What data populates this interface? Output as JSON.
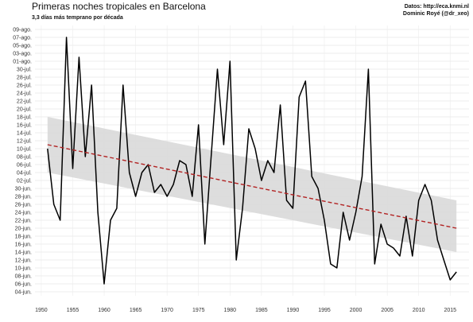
{
  "chart_data": {
    "type": "line",
    "title": "Primeras noches tropicales en Barcelona",
    "subtitle": "3,3 días más temprano por década",
    "source_line1": "Datos: http://eca.knmi.nl",
    "source_line2": "Dominic Royé (@dr_xeo)",
    "xlabel": "",
    "ylabel": "",
    "x_ticks": [
      1950,
      1955,
      1960,
      1965,
      1970,
      1975,
      1980,
      1985,
      1990,
      1995,
      2000,
      2005,
      2010,
      2015
    ],
    "x_range": [
      1949,
      2018
    ],
    "y_tick_labels": [
      "04-jun.",
      "06-jun.",
      "08-jun.",
      "10-jun.",
      "12-jun.",
      "14-jun.",
      "16-jun.",
      "18-jun.",
      "20-jun.",
      "22-jun.",
      "24-jun.",
      "26-jun.",
      "28-jun.",
      "30-jun.",
      "02-jul.",
      "04-jul.",
      "06-jul.",
      "08-jul.",
      "10-jul.",
      "12-jul.",
      "14-jul.",
      "16-jul.",
      "18-jul.",
      "20-jul.",
      "22-jul.",
      "24-jul.",
      "26-jul.",
      "28-jul.",
      "30-jul.",
      "01-ago.",
      "03-ago.",
      "05-ago.",
      "07-ago.",
      "09-ago."
    ],
    "y_range": [
      "03-jun.",
      "10-ago."
    ],
    "grid": true,
    "legend": "none",
    "series": [
      {
        "line_color": "#000000",
        "x": [
          1951,
          1952,
          1953,
          1954,
          1955,
          1956,
          1957,
          1958,
          1959,
          1960,
          1961,
          1962,
          1963,
          1964,
          1965,
          1966,
          1967,
          1968,
          1969,
          1970,
          1971,
          1972,
          1973,
          1974,
          1975,
          1976,
          1977,
          1978,
          1979,
          1980,
          1981,
          1982,
          1983,
          1984,
          1985,
          1986,
          1987,
          1988,
          1989,
          1990,
          1991,
          1992,
          1993,
          1994,
          1995,
          1996,
          1997,
          1998,
          1999,
          2000,
          2001,
          2002,
          2003,
          2004,
          2005,
          2006,
          2007,
          2008,
          2009,
          2010,
          2011,
          2012,
          2013,
          2014,
          2015,
          2016
        ],
        "y": [
          "10-jul.",
          "26-jun.",
          "22-jun.",
          "07-ago.",
          "05-jul.",
          "02-ago.",
          "08-jul.",
          "26-jul.",
          "24-jun.",
          "06-jun.",
          "22-jun.",
          "25-jun.",
          "26-jul.",
          "04-jul.",
          "28-jun.",
          "04-jul.",
          "06-jul.",
          "29-jun.",
          "01-jul.",
          "28-jun.",
          "01-jul.",
          "07-jul.",
          "06-jul.",
          "28-jun.",
          "16-jul.",
          "16-jun.",
          "08-jul.",
          "30-jul.",
          "11-jul.",
          "01-ago.",
          "12-jun.",
          "25-jun.",
          "15-jul.",
          "10-jul.",
          "02-jul.",
          "07-jul.",
          "04-jul.",
          "21-jul.",
          "27-jun.",
          "25-jun.",
          "23-jul.",
          "27-jul.",
          "03-jul.",
          "30-jun.",
          "22-jun.",
          "11-jun.",
          "10-jun.",
          "24-jun.",
          "17-jun.",
          "24-jun.",
          "03-jul.",
          "30-jul.",
          "11-jun.",
          "21-jun.",
          "16-jun.",
          "15-jun.",
          "13-jun.",
          "23-jun.",
          "13-jun.",
          "27-jun.",
          "01-jul.",
          "27-jun.",
          "17-jun.",
          "12-jun.",
          "07-jun.",
          "09-jun."
        ]
      }
    ],
    "trend": {
      "line_color": "#b22222",
      "style": "dashed",
      "x": [
        1951,
        2016
      ],
      "y": [
        "11-jul.",
        "20-jun."
      ],
      "band_color": "#d9d9d9",
      "band_x": [
        1951,
        2016
      ],
      "band_lower": [
        "04-jul.",
        "14-jun."
      ],
      "band_upper": [
        "18-jul.",
        "27-jun."
      ]
    }
  }
}
